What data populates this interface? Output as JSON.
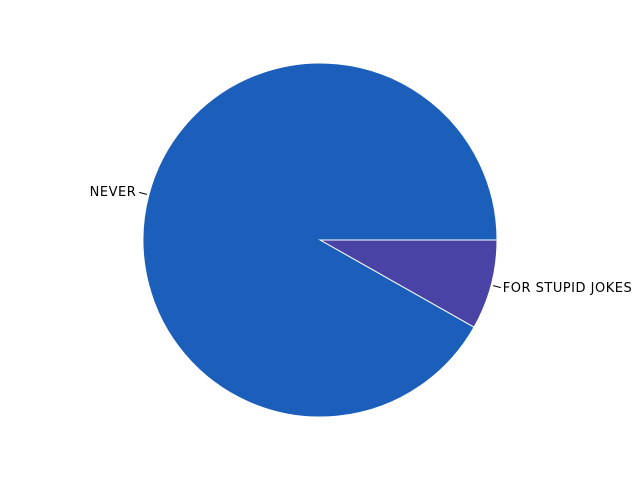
{
  "chart_data": {
    "type": "pie",
    "title": "",
    "slices": [
      {
        "label": "NEVER",
        "value": 91.8,
        "color": "#1b5fbb"
      },
      {
        "label": "FOR STUPID JOKES",
        "value": 8.2,
        "color": "#4a43a6"
      }
    ],
    "start_angle_deg": 0,
    "direction": "clockwise",
    "legend": "none"
  }
}
